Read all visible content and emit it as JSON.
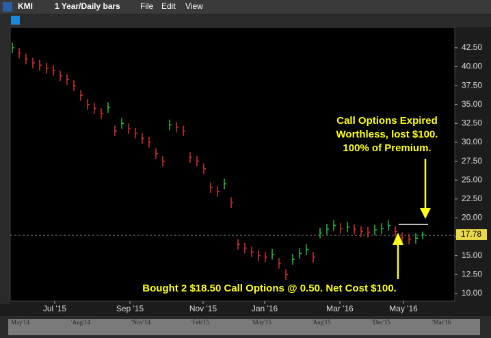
{
  "toolbar": {
    "symbol": "KMI",
    "period": "1 Year/Daily bars",
    "menus": [
      "File",
      "Edit",
      "View"
    ]
  },
  "chart_data": {
    "type": "ohlc",
    "xlim": [
      -0.3,
      64.7
    ],
    "xticks": [
      {
        "value": 6.2,
        "label": "Jul '15"
      },
      {
        "value": 17.2,
        "label": "Sep '15"
      },
      {
        "value": 27.9,
        "label": "Nov '15"
      },
      {
        "value": 36.9,
        "label": "Jan '16"
      },
      {
        "value": 47.9,
        "label": "Mar '16"
      },
      {
        "value": 57.2,
        "label": "May '16"
      }
    ],
    "ylim": [
      9,
      45.2
    ],
    "yticks": [
      {
        "value": 10,
        "label": "10.00"
      },
      {
        "value": 12.5,
        "label": "12.50"
      },
      {
        "value": 15,
        "label": "15.00"
      },
      {
        "value": 17.5,
        "label": "17.50"
      },
      {
        "value": 20,
        "label": "20.00"
      },
      {
        "value": 22.5,
        "label": "22.50"
      },
      {
        "value": 25,
        "label": "25.00"
      },
      {
        "value": 27.5,
        "label": "27.50"
      },
      {
        "value": 30,
        "label": "30.00"
      },
      {
        "value": 32.5,
        "label": "32.50"
      },
      {
        "value": 35,
        "label": "35.00"
      },
      {
        "value": 37.5,
        "label": "37.50"
      },
      {
        "value": 40,
        "label": "40.00"
      },
      {
        "value": 42.5,
        "label": "42.50"
      }
    ],
    "up_color": "#22c33a",
    "down_color": "#d9302a",
    "close": [
      42.5,
      41.8,
      41,
      40.5,
      40.2,
      39.8,
      39.5,
      38.8,
      38.3,
      37.5,
      36.2,
      35,
      34.5,
      33.8,
      34.6,
      31.5,
      32.5,
      31.8,
      31.2,
      30.5,
      30,
      28.5,
      27.5,
      32.3,
      32,
      31.5,
      28,
      27.5,
      26.5,
      24,
      23.5,
      24.5,
      22,
      16.5,
      16,
      15.5,
      15,
      14.8,
      15.2,
      14,
      12.5,
      14.5,
      15.3,
      15.8,
      14.8,
      18,
      18.5,
      19,
      18.6,
      18.8,
      18.5,
      18.2,
      18.1,
      18.4,
      18.6,
      19,
      18.2,
      17.4,
      17.2,
      17.3,
      17.78
    ],
    "high": [
      43.2,
      42.5,
      41.7,
      41.2,
      40.9,
      40.5,
      40.2,
      39.5,
      39,
      38.2,
      36.9,
      35.7,
      35.2,
      34.5,
      35.3,
      32.2,
      33.2,
      32.5,
      31.9,
      31.2,
      30.7,
      29.2,
      28.2,
      33,
      32.7,
      32.2,
      28.7,
      28.2,
      27.2,
      24.7,
      24.2,
      25.2,
      22.7,
      17.2,
      16.7,
      16.2,
      15.7,
      15.5,
      15.9,
      14.7,
      13.2,
      15.2,
      16,
      16.5,
      15.5,
      18.7,
      19.2,
      19.7,
      19.3,
      19.5,
      19.2,
      18.9,
      18.8,
      19.1,
      19.3,
      19.7,
      18.9,
      18.1,
      17.9,
      18,
      18.2
    ],
    "low": [
      41.8,
      41.1,
      40.3,
      39.8,
      39.5,
      39.1,
      38.8,
      38.1,
      37.6,
      36.8,
      35.5,
      34.3,
      33.8,
      33.1,
      33.9,
      30.8,
      31.8,
      31.1,
      30.5,
      29.8,
      29.3,
      27.8,
      26.8,
      31.6,
      31.3,
      30.8,
      27.3,
      26.8,
      25.8,
      23.3,
      22.8,
      23.8,
      21.3,
      15.8,
      15.3,
      14.8,
      14.3,
      14.1,
      14.5,
      13.3,
      11.8,
      13.8,
      14.6,
      15.1,
      14.1,
      17.3,
      17.8,
      18.3,
      17.9,
      18.1,
      17.8,
      17.5,
      17.4,
      17.7,
      17.9,
      18.3,
      17.5,
      16.7,
      16.5,
      16.6,
      17.2
    ],
    "annotations": {
      "top": [
        "Call Options Expired",
        "Worthless, lost $100.",
        "100% of Premium."
      ],
      "bottom": "Bought 2 $18.50 Call Options @ 0.50. Net Cost $100."
    }
  },
  "navigator": {
    "labels": [
      "May'14",
      "'Aug'14",
      "'Nov'14",
      "'Feb'15",
      "'May'15",
      "'Aug'15",
      "'Dec'15",
      "'Mar'16"
    ]
  }
}
